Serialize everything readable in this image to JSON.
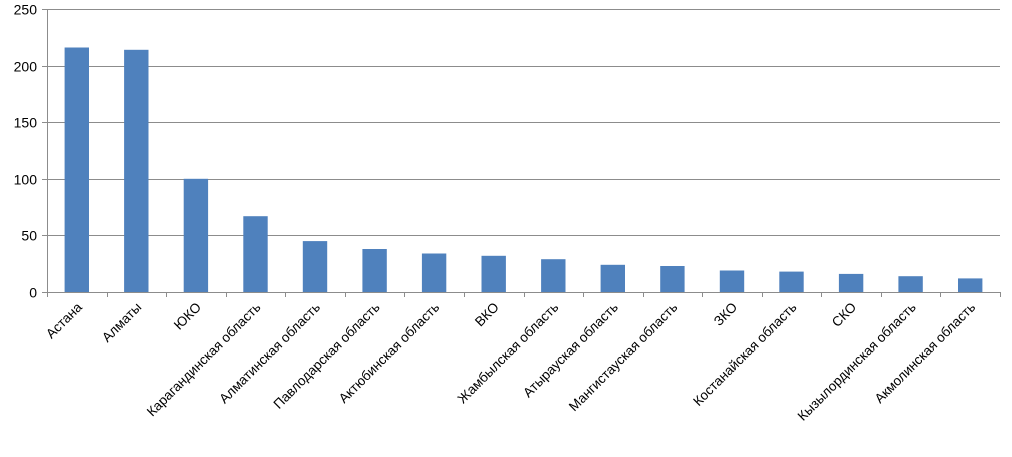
{
  "chart_data": {
    "type": "bar",
    "title": "",
    "xlabel": "",
    "ylabel": "",
    "ylim": [
      0,
      250
    ],
    "yticks": [
      0,
      50,
      100,
      150,
      200,
      250
    ],
    "grid": true,
    "legend": "none",
    "bar_color": "#4F81BD",
    "categories": [
      "Астана",
      "Алматы",
      "ЮКО",
      "Карагандинская  область",
      "Алматинская область",
      "Павлодарская область",
      "Актюбинская область",
      "ВКО",
      "Жамбылская область",
      "Атырауская область",
      "Мангистауская область",
      "ЗКО",
      "Костанайская  область",
      "СКО",
      "Кызылординская  область",
      "Акмолинская область"
    ],
    "values": [
      216,
      214,
      100,
      67,
      45,
      38,
      34,
      32,
      29,
      24,
      23,
      19,
      18,
      16,
      14,
      12
    ]
  }
}
